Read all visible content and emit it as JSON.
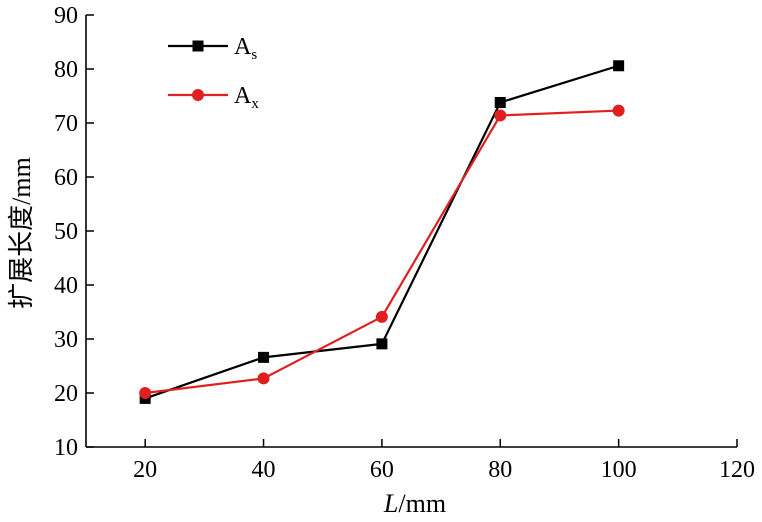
{
  "chart_data": {
    "type": "line",
    "x": [
      20,
      40,
      60,
      80,
      100
    ],
    "series": [
      {
        "name": "A",
        "subscript": "s",
        "color": "#000000",
        "marker": "square",
        "values": [
          19,
          26.6,
          29.1,
          73.8,
          80.6
        ]
      },
      {
        "name": "A",
        "subscript": "x",
        "color": "#e02020",
        "marker": "circle",
        "values": [
          20,
          22.7,
          34.1,
          71.4,
          72.3
        ]
      }
    ],
    "xlabel_italic": "L",
    "xlabel_rest": "/mm",
    "ylabel": "扩展长度/mm",
    "xlim": [
      10,
      120
    ],
    "ylim": [
      10,
      90
    ],
    "xticks": [
      20,
      40,
      60,
      80,
      100,
      120
    ],
    "yticks": [
      10,
      20,
      30,
      40,
      50,
      60,
      70,
      80,
      90
    ],
    "grid": false,
    "legend_position": "top-left"
  }
}
